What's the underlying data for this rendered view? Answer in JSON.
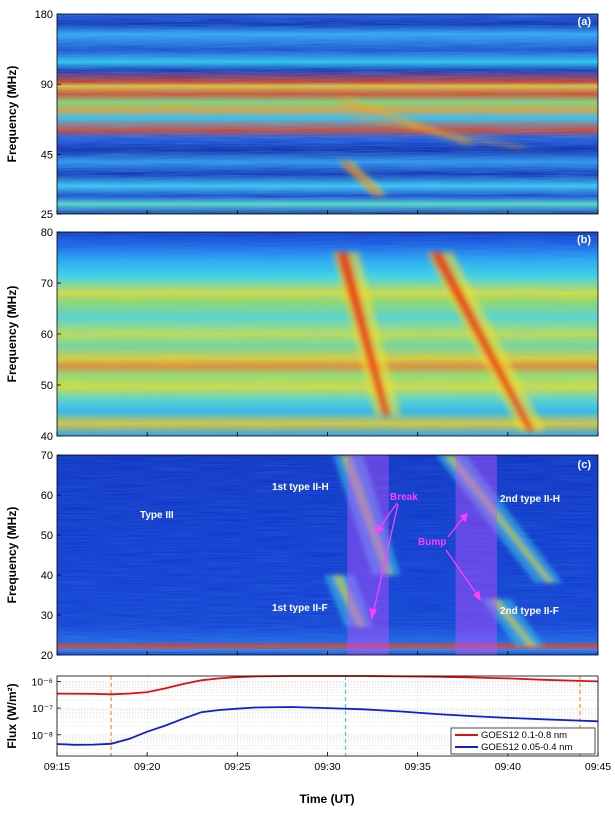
{
  "chart_data": [
    {
      "type": "heatmap",
      "panel_label": "(a)",
      "ylabel": "Frequency (MHz)",
      "yticks": [
        "180",
        "90",
        "45",
        "25"
      ],
      "ytick_values": [
        180,
        90,
        45,
        25
      ],
      "ylim": [
        25,
        180
      ],
      "yscale": "log",
      "xlim": [
        "09:15",
        "09:45"
      ],
      "colormap": "jet",
      "features": [
        {
          "name": "type II lane",
          "t_start": "09:30.3",
          "t_end": "09:38",
          "f_start": 78,
          "f_end": 50
        },
        {
          "name": "type II lane",
          "t_start": "09:31",
          "t_end": "09:41",
          "f_start": 65,
          "f_end": 48
        },
        {
          "name": "type II lane",
          "t_start": "09:30.6",
          "t_end": "09:33",
          "f_start": 42,
          "f_end": 30
        }
      ]
    },
    {
      "type": "heatmap",
      "panel_label": "(b)",
      "ylabel": "Frequency (MHz)",
      "yticks": [
        "80",
        "70",
        "60",
        "50",
        "40"
      ],
      "ytick_values": [
        80,
        70,
        60,
        50,
        40
      ],
      "ylim": [
        40,
        80
      ],
      "xlim": [
        "09:15",
        "09:45"
      ],
      "colormap": "jet",
      "features": [
        {
          "name": "1st type II-H",
          "t_start": "09:30.3",
          "t_end": "09:33.5",
          "f_start": 76,
          "f_end": 44
        },
        {
          "name": "2nd type II-H",
          "t_start": "09:35.5",
          "t_end": "09:41.5",
          "f_start": 76,
          "f_end": 41
        }
      ]
    },
    {
      "type": "heatmap",
      "panel_label": "(c)",
      "ylabel": "Frequency (MHz)",
      "yticks": [
        "70",
        "60",
        "50",
        "40",
        "30",
        "20"
      ],
      "ytick_values": [
        70,
        60,
        50,
        40,
        30,
        20
      ],
      "ylim": [
        20,
        70
      ],
      "xlim": [
        "09:15",
        "09:45"
      ],
      "colormap": "jet",
      "shaded_intervals": [
        {
          "t_start": "09:31.1",
          "t_end": "09:33.4"
        },
        {
          "t_start": "09:37.1",
          "t_end": "09:39.4"
        }
      ],
      "annotations": {
        "type3": "Type III",
        "ii_h_1": "1st type II-H",
        "ii_f_1": "1st type II-F",
        "ii_h_2": "2nd type II-H",
        "ii_f_2": "2nd type II-F",
        "break": "Break",
        "bump": "Bump"
      }
    },
    {
      "type": "line",
      "ylabel": "Flux (W/m²)",
      "xlabel": "Time (UT)",
      "yscale": "log",
      "ylim": [
        1.6e-09,
        1.6e-06
      ],
      "yticks": [
        "10⁻⁶",
        "10⁻⁷",
        "10⁻⁸"
      ],
      "xlim": [
        "09:15",
        "09:45"
      ],
      "xticks": [
        "09:15",
        "09:20",
        "09:25",
        "09:30",
        "09:35",
        "09:40",
        "09:45"
      ],
      "legend_placement": "bottom-right",
      "vertical_markers": [
        {
          "t": "09:18",
          "color": "#ff8c1a"
        },
        {
          "t": "09:31",
          "color": "#33d6e0"
        },
        {
          "t": "09:44",
          "color": "#ff8c1a"
        }
      ],
      "series": [
        {
          "name": "GOES12 0.1-0.8 nm",
          "color": "#e01010",
          "x": [
            "09:15",
            "09:17",
            "09:18",
            "09:19",
            "09:20",
            "09:21",
            "09:22",
            "09:23",
            "09:24",
            "09:25",
            "09:26",
            "09:28",
            "09:30",
            "09:32",
            "09:34",
            "09:36",
            "09:38",
            "09:40",
            "09:42",
            "09:44",
            "09:45"
          ],
          "values": [
            3.5e-07,
            3.4e-07,
            3.3e-07,
            3.5e-07,
            4e-07,
            5.5e-07,
            8e-07,
            1.1e-06,
            1.3e-06,
            1.45e-06,
            1.55e-06,
            1.6e-06,
            1.6e-06,
            1.6e-06,
            1.55e-06,
            1.5e-06,
            1.4e-06,
            1.3e-06,
            1.15e-06,
            1.05e-06,
            1e-06
          ]
        },
        {
          "name": "GOES12 0.05-0.4 nm",
          "color": "#1020d0",
          "x": [
            "09:15",
            "09:16",
            "09:17",
            "09:18",
            "09:19",
            "09:20",
            "09:21",
            "09:22",
            "09:23",
            "09:24",
            "09:25",
            "09:26",
            "09:28",
            "09:30",
            "09:32",
            "09:34",
            "09:36",
            "09:38",
            "09:40",
            "09:42",
            "09:44",
            "09:45"
          ],
          "values": [
            4.5e-09,
            4.2e-09,
            4.3e-09,
            4.6e-09,
            7e-09,
            1.3e-08,
            2.2e-08,
            4e-08,
            7e-08,
            8.5e-08,
            9.5e-08,
            1.05e-07,
            1.1e-07,
            1e-07,
            9e-08,
            7.5e-08,
            6e-08,
            5e-08,
            4.3e-08,
            3.8e-08,
            3.4e-08,
            3.2e-08
          ]
        }
      ]
    }
  ]
}
